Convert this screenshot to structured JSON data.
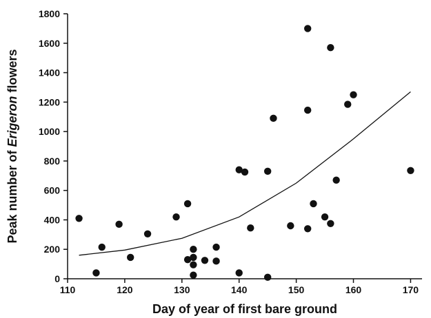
{
  "chart_data": {
    "type": "scatter",
    "xlabel": "Day of year of first bare ground",
    "ylabel": {
      "pre": "Peak number of ",
      "italic": "Erigeron",
      "post": " flowers"
    },
    "xlim": [
      110,
      172
    ],
    "ylim": [
      0,
      1800
    ],
    "xticks": [
      110,
      120,
      130,
      140,
      150,
      160,
      170
    ],
    "yticks": [
      0,
      200,
      400,
      600,
      800,
      1000,
      1200,
      1400,
      1600,
      1800
    ],
    "grid": false,
    "legend": "none",
    "point_color": "#111111",
    "series": [
      {
        "points": [
          [
            112,
            410
          ],
          [
            115,
            40
          ],
          [
            116,
            215
          ],
          [
            119,
            370
          ],
          [
            121,
            145
          ],
          [
            124,
            305
          ],
          [
            129,
            420
          ],
          [
            131,
            510
          ],
          [
            131,
            130
          ],
          [
            132,
            200
          ],
          [
            132,
            145
          ],
          [
            132,
            95
          ],
          [
            132,
            25
          ],
          [
            134,
            125
          ],
          [
            136,
            215
          ],
          [
            136,
            120
          ],
          [
            140,
            740
          ],
          [
            140,
            40
          ],
          [
            141,
            725
          ],
          [
            142,
            345
          ],
          [
            145,
            730
          ],
          [
            145,
            10
          ],
          [
            146,
            1090
          ],
          [
            149,
            360
          ],
          [
            152,
            1700
          ],
          [
            152,
            1145
          ],
          [
            152,
            340
          ],
          [
            153,
            510
          ],
          [
            155,
            420
          ],
          [
            156,
            1570
          ],
          [
            156,
            375
          ],
          [
            157,
            670
          ],
          [
            159,
            1185
          ],
          [
            160,
            1250
          ],
          [
            170,
            735
          ]
        ]
      }
    ],
    "fit_curve": {
      "type": "exponential",
      "points": [
        [
          112,
          160
        ],
        [
          120,
          195
        ],
        [
          130,
          275
        ],
        [
          140,
          420
        ],
        [
          150,
          650
        ],
        [
          160,
          950
        ],
        [
          170,
          1270
        ]
      ]
    }
  }
}
